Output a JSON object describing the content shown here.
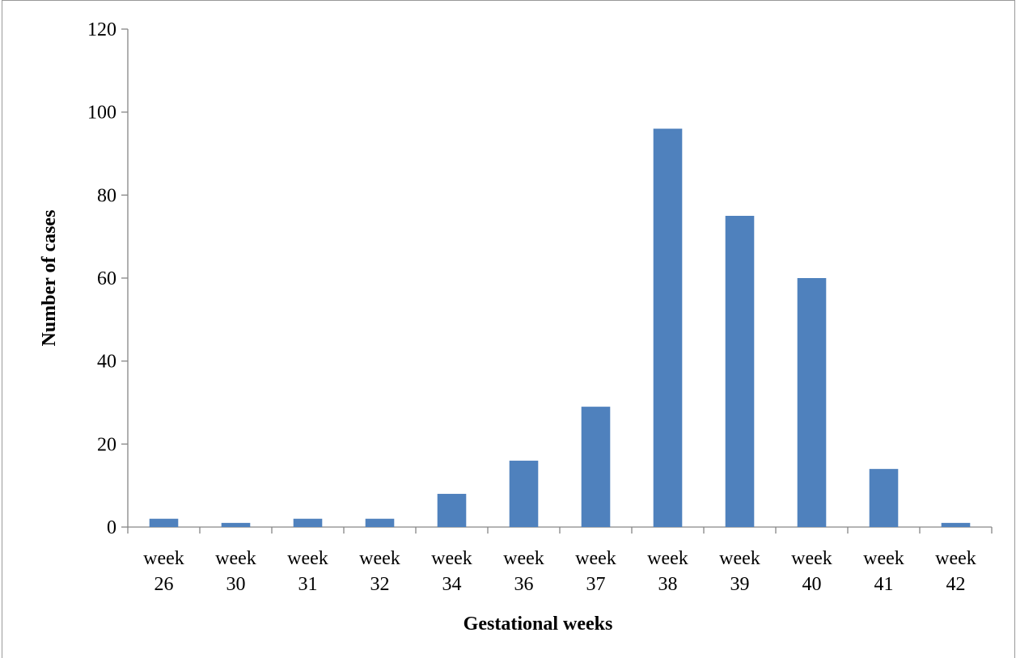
{
  "chart_data": {
    "type": "bar",
    "x_label": "Gestational weeks",
    "y_label": "Number of cases",
    "categories": [
      "week 26",
      "week 30",
      "week 31",
      "week 32",
      "week 34",
      "week 36",
      "week 37",
      "week 38",
      "week 39",
      "week 40",
      "week 41",
      "week 42"
    ],
    "values": [
      2,
      1,
      2,
      2,
      8,
      16,
      29,
      96,
      75,
      60,
      14,
      1
    ],
    "color": "#4f81bd",
    "ylim": [
      0,
      120
    ],
    "yticks": [
      0,
      20,
      40,
      60,
      80,
      100,
      120
    ],
    "grid": false
  }
}
